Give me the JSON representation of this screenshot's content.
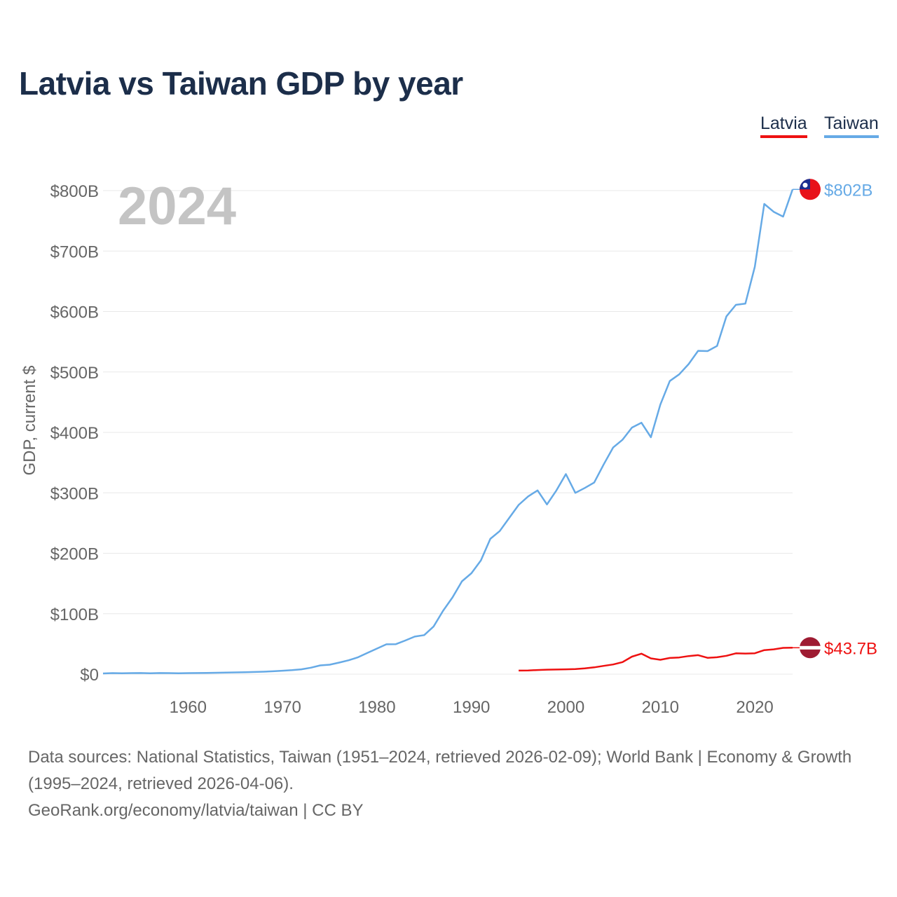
{
  "title": "Latvia vs Taiwan GDP by year",
  "legend": [
    {
      "label": "Latvia",
      "color": "#ee1111"
    },
    {
      "label": "Taiwan",
      "color": "#66aae6"
    }
  ],
  "footer": {
    "sources": "Data sources: National Statistics, Taiwan (1951–2024, retrieved 2026-02-09); World Bank | Economy & Growth (1995–2024, retrieved 2026-04-06).",
    "credit": "GeoRank.org/economy/latvia/taiwan | CC BY"
  },
  "chart_data": {
    "type": "line",
    "title": "Latvia vs Taiwan GDP by year",
    "year_label": "2024",
    "xlabel": "",
    "ylabel": "GDP, current $",
    "xlim": [
      1951,
      2024
    ],
    "ylim": [
      0,
      800
    ],
    "y_unit": "billions USD",
    "x_ticks": [
      1960,
      1970,
      1980,
      1990,
      2000,
      2010,
      2020
    ],
    "y_ticks": [
      0,
      100,
      200,
      300,
      400,
      500,
      600,
      700,
      800
    ],
    "y_tick_labels": [
      "$0",
      "$100B",
      "$200B",
      "$300B",
      "$400B",
      "$500B",
      "$600B",
      "$700B",
      "$800B"
    ],
    "grid": true,
    "series": [
      {
        "name": "Taiwan",
        "color": "#66aae6",
        "end_label": "$802B",
        "x": [
          1951,
          1952,
          1953,
          1954,
          1955,
          1956,
          1957,
          1958,
          1959,
          1960,
          1961,
          1962,
          1963,
          1964,
          1965,
          1966,
          1967,
          1968,
          1969,
          1970,
          1971,
          1972,
          1973,
          1974,
          1975,
          1976,
          1977,
          1978,
          1979,
          1980,
          1981,
          1982,
          1983,
          1984,
          1985,
          1986,
          1987,
          1988,
          1989,
          1990,
          1991,
          1992,
          1993,
          1994,
          1995,
          1996,
          1997,
          1998,
          1999,
          2000,
          2001,
          2002,
          2003,
          2004,
          2005,
          2006,
          2007,
          2008,
          2009,
          2010,
          2011,
          2012,
          2013,
          2014,
          2015,
          2016,
          2017,
          2018,
          2019,
          2020,
          2021,
          2022,
          2023,
          2024
        ],
        "values": [
          1.2,
          1.7,
          1.5,
          1.7,
          1.9,
          1.5,
          1.8,
          1.7,
          1.5,
          1.7,
          1.8,
          2.0,
          2.3,
          2.6,
          2.9,
          3.2,
          3.6,
          4.1,
          4.8,
          5.7,
          6.6,
          8.0,
          10.7,
          14.5,
          15.7,
          19.1,
          22.9,
          28.0,
          35.2,
          42.3,
          49.4,
          49.6,
          55.6,
          62.1,
          64.6,
          79.0,
          104.9,
          127.0,
          153.6,
          167.0,
          188.1,
          223.9,
          236.8,
          258.4,
          280.0,
          294.0,
          304.0,
          280.8,
          304.0,
          331.0,
          300.0,
          308.0,
          317.0,
          346.9,
          375.0,
          388.0,
          408.0,
          416.0,
          392.0,
          446.0,
          485.0,
          496.0,
          513.0,
          535.0,
          534.5,
          543.0,
          592.0,
          611.0,
          613.0,
          674.0,
          778.0,
          765.0,
          757.0,
          802.0
        ]
      },
      {
        "name": "Latvia",
        "color": "#ee1111",
        "end_label": "$43.7B",
        "x": [
          1995,
          1996,
          1997,
          1998,
          1999,
          2000,
          2001,
          2002,
          2003,
          2004,
          2005,
          2006,
          2007,
          2008,
          2009,
          2010,
          2011,
          2012,
          2013,
          2014,
          2015,
          2016,
          2017,
          2018,
          2019,
          2020,
          2021,
          2022,
          2023,
          2024
        ],
        "values": [
          5.9,
          6.1,
          6.8,
          7.4,
          7.7,
          8.0,
          8.4,
          9.5,
          11.3,
          13.7,
          16.0,
          19.9,
          29.0,
          33.8,
          26.1,
          23.8,
          26.8,
          27.6,
          29.9,
          31.4,
          27.0,
          28.0,
          30.4,
          34.4,
          34.1,
          34.6,
          39.8,
          41.1,
          43.5,
          43.7
        ]
      }
    ]
  }
}
